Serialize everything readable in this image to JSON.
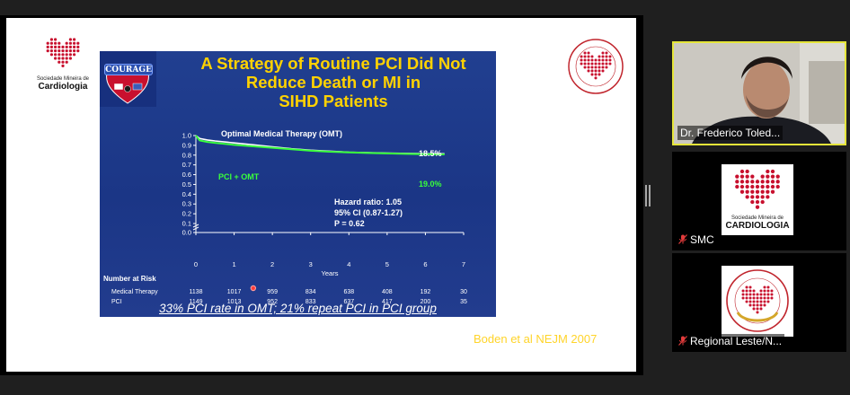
{
  "slide": {
    "title_lines": [
      "A Strategy of Routine PCI Did Not",
      "Reduce Death or MI in",
      "SIHD Patients"
    ],
    "courage_label": "COURAGE",
    "left_logo": {
      "line1": "Sociedade Mineira de",
      "line2": "Cardiologia"
    },
    "footnote": "33% PCI rate in OMT; 21% repeat PCI in PCI group",
    "citation": "Boden et al NEJM 2007"
  },
  "chart_data": {
    "type": "line",
    "xlabel": "Years",
    "x_ticks": [
      "0",
      "1",
      "2",
      "3",
      "4",
      "5",
      "6",
      "7"
    ],
    "y_ticks": [
      "0.0",
      "0.1",
      "0.2",
      "0.3",
      "0.4",
      "0.5",
      "0.6",
      "0.7",
      "0.8",
      "0.9",
      "1.0"
    ],
    "xlim": [
      0,
      7
    ],
    "ylim": [
      0,
      1.0
    ],
    "series": [
      {
        "name": "Optimal Medical Therapy (OMT)",
        "color": "#ffffff",
        "end_label": "18.5%",
        "x": [
          0,
          0.1,
          0.3,
          0.5,
          1,
          1.5,
          2,
          2.5,
          3,
          3.5,
          4,
          4.5,
          5,
          5.5,
          6,
          6.5
        ],
        "y": [
          1.0,
          0.97,
          0.955,
          0.945,
          0.925,
          0.905,
          0.885,
          0.865,
          0.85,
          0.84,
          0.83,
          0.825,
          0.82,
          0.817,
          0.815,
          0.813
        ]
      },
      {
        "name": "PCI + OMT",
        "color": "#39ff3c",
        "end_label": "19.0%",
        "x": [
          0,
          0.1,
          0.3,
          0.5,
          1,
          1.5,
          2,
          2.5,
          3,
          3.5,
          4,
          4.5,
          5,
          5.5,
          6,
          6.5
        ],
        "y": [
          1.0,
          0.95,
          0.935,
          0.925,
          0.905,
          0.89,
          0.875,
          0.86,
          0.845,
          0.835,
          0.828,
          0.822,
          0.818,
          0.813,
          0.81,
          0.807
        ]
      }
    ],
    "annotations": [
      "Hazard ratio: 1.05",
      "95% CI (0.87-1.27)",
      "P = 0.62"
    ],
    "number_at_risk": {
      "label": "Number at Risk",
      "rows": [
        {
          "name": "Medical Therapy",
          "values": [
            "1138",
            "1017",
            "959",
            "834",
            "638",
            "408",
            "192",
            "30"
          ]
        },
        {
          "name": "PCI",
          "values": [
            "1149",
            "1013",
            "952",
            "833",
            "637",
            "417",
            "200",
            "35"
          ]
        }
      ]
    }
  },
  "participants": [
    {
      "name": "Dr. Frederico Toled...",
      "muted": false
    },
    {
      "name": "SMC",
      "muted": true
    },
    {
      "name": "Regional Leste/N...",
      "muted": true
    }
  ],
  "smc_logo": {
    "line1": "Sociedade Mineira de",
    "line2": "CARDIOLOGIA"
  },
  "colors": {
    "slide_bg": "#1c3c8c",
    "title": "#ffd200",
    "pci": "#39ff3c",
    "omt": "#ffffff",
    "active_speaker": "#e5e53a"
  }
}
